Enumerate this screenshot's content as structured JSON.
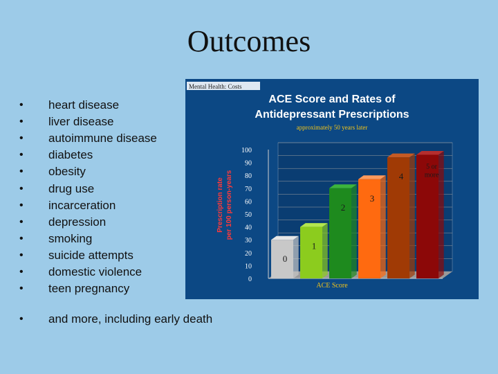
{
  "slide": {
    "title": "Outcomes",
    "bullet_symbol": "•",
    "bullets": [
      "heart disease",
      "liver disease",
      "autoimmune disease",
      "diabetes",
      "obesity",
      "drug use",
      "incarceration",
      "depression",
      "smoking",
      "suicide attempts",
      "domestic violence",
      "teen pregnancy"
    ],
    "extra_bullet": "and more, including early death"
  },
  "chart_data": {
    "type": "bar",
    "corner_label": "Mental Health: Costs",
    "title": [
      "ACE Score and Rates of",
      "Antidepressant Prescriptions"
    ],
    "subtitle": "approximately 50 years later",
    "ylabel": [
      "Prescription rate",
      "per 100 person-years"
    ],
    "xlabel": "ACE Score",
    "yticks": [
      "100",
      "90",
      "80",
      "70",
      "60",
      "50",
      "40",
      "30",
      "20",
      "10",
      "0"
    ],
    "ylim": [
      0,
      100
    ],
    "categories": [
      "0",
      "1",
      "2",
      "3",
      "4",
      "5 or more"
    ],
    "values": [
      30,
      40,
      70,
      77,
      94,
      96
    ],
    "colors": {
      "bars": [
        "#c8c8c8",
        "#8ccc1e",
        "#1e8a1e",
        "#ff6a10",
        "#a03a05",
        "#8c0808"
      ],
      "bar_tops": [
        "#e6e6e6",
        "#b3e64e",
        "#3cb43c",
        "#ff9a5c",
        "#c45a24",
        "#b52e2e"
      ],
      "background": "#0c4884",
      "accent_title": "#ffffff",
      "subtitle": "#f5c518",
      "axis_text": "#ffffff",
      "grid": "#a0a0a0"
    }
  }
}
